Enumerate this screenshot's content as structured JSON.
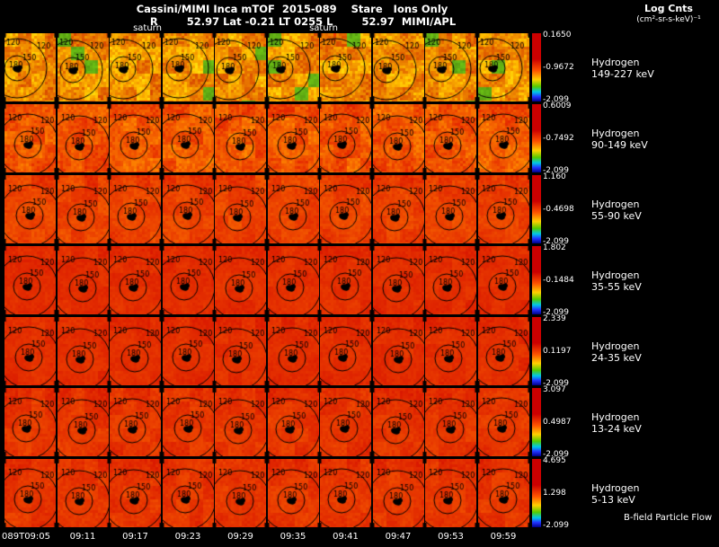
{
  "header": {
    "title": "Cassini/MIMI Inca mTOF  2015-089    Stare   Ions Only",
    "subtitle": "R        52.97 Lat -0.21 LT 0255 L        52.97  MIMI/APL",
    "units_line1": "Log Cnts",
    "units_line2": "(cm²-sr-s-keV)⁻¹"
  },
  "saturn_labels": [
    "saturn",
    "saturn"
  ],
  "contour_labels": [
    "120",
    "150",
    "180"
  ],
  "rows": [
    {
      "species": "Hydrogen",
      "energy": "149-227 keV",
      "cb_max": "0.1650",
      "cb_mid": "-0.9672",
      "cb_min": "-2.099"
    },
    {
      "species": "Hydrogen",
      "energy": "90-149 keV",
      "cb_max": "0.6009",
      "cb_mid": "-0.7492",
      "cb_min": "-2.099"
    },
    {
      "species": "Hydrogen",
      "energy": "55-90 keV",
      "cb_max": "1.160",
      "cb_mid": "-0.4698",
      "cb_min": "-2.099"
    },
    {
      "species": "Hydrogen",
      "energy": "35-55 keV",
      "cb_max": "1.802",
      "cb_mid": "-0.1484",
      "cb_min": "-2.099"
    },
    {
      "species": "Hydrogen",
      "energy": "24-35 keV",
      "cb_max": "2.339",
      "cb_mid": "0.1197",
      "cb_min": "-2.099"
    },
    {
      "species": "Hydrogen",
      "energy": "13-24 keV",
      "cb_max": "3.097",
      "cb_mid": "0.4987",
      "cb_min": "-2.099"
    },
    {
      "species": "Hydrogen",
      "energy": "5-13 keV",
      "cb_max": "4.695",
      "cb_mid": "1.298",
      "cb_min": "-2.099"
    }
  ],
  "time_axis": {
    "labels": [
      "089T09:05",
      "09:11",
      "09:17",
      "09:23",
      "09:29",
      "09:35",
      "09:41",
      "09:47",
      "09:53",
      "09:59"
    ]
  },
  "footer": {
    "bfield": "B-field Particle Flow"
  },
  "colors": {
    "background": "#000000",
    "text": "#ffffff",
    "colorbar": [
      "#cc0000",
      "#ff5500",
      "#ffd000",
      "#55cc00",
      "#00c8e8",
      "#2233ff",
      "#000088"
    ]
  },
  "chart_data": {
    "type": "heatmap",
    "title": "Cassini/MIMI Inca mTOF 2015-089 Stare Ions Only",
    "subtitle": "R 52.97 Lat -0.21 LT 0255 L 52.97 MIMI/APL",
    "value_units": "Log Cnts (cm²-sr-s-keV)⁻¹",
    "x_time_labels": [
      "089T09:05",
      "09:11",
      "09:17",
      "09:23",
      "09:29",
      "09:35",
      "09:41",
      "09:47",
      "09:53",
      "09:59"
    ],
    "pitch_angle_contours_deg": [
      120,
      150,
      180
    ],
    "grid": "7 energy rows x 10 time columns of pitch-angle sky maps",
    "legend_position": "right",
    "series": [
      {
        "name": "Hydrogen 149-227 keV",
        "log_counts_min": -2.099,
        "log_counts_mid": -0.9672,
        "log_counts_max": 0.165
      },
      {
        "name": "Hydrogen 90-149 keV",
        "log_counts_min": -2.099,
        "log_counts_mid": -0.7492,
        "log_counts_max": 0.6009
      },
      {
        "name": "Hydrogen 55-90 keV",
        "log_counts_min": -2.099,
        "log_counts_mid": -0.4698,
        "log_counts_max": 1.16
      },
      {
        "name": "Hydrogen 35-55 keV",
        "log_counts_min": -2.099,
        "log_counts_mid": -0.1484,
        "log_counts_max": 1.802
      },
      {
        "name": "Hydrogen 24-35 keV",
        "log_counts_min": -2.099,
        "log_counts_mid": 0.1197,
        "log_counts_max": 2.339
      },
      {
        "name": "Hydrogen 13-24 keV",
        "log_counts_min": -2.099,
        "log_counts_mid": 0.4987,
        "log_counts_max": 3.097
      },
      {
        "name": "Hydrogen 5-13 keV",
        "log_counts_min": -2.099,
        "log_counts_mid": 1.298,
        "log_counts_max": 4.695
      }
    ]
  }
}
